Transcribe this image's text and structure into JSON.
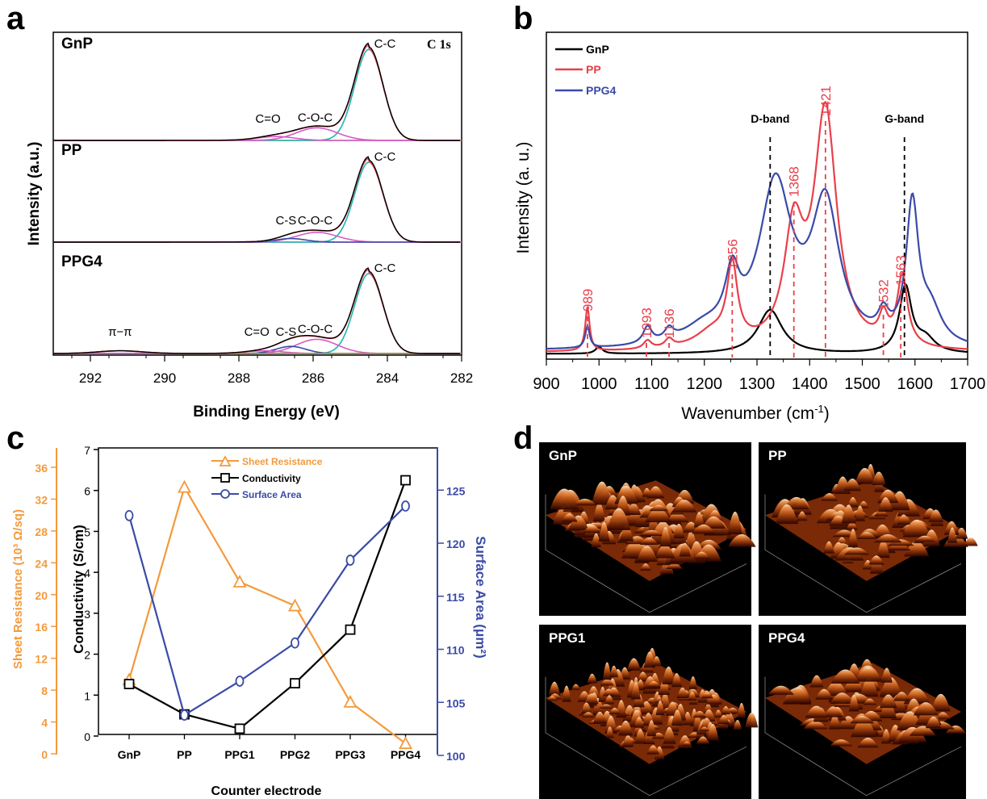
{
  "panels": {
    "a": "a",
    "b": "b",
    "c": "c",
    "d": "d"
  },
  "colors": {
    "black": "#000000",
    "red": "#e8404a",
    "blue": "#3a4aa8",
    "orange": "#f39a3c",
    "cyan": "#1fb5b0",
    "magenta": "#d65ac8",
    "olive": "#9aa035"
  },
  "chart_data": [
    {
      "panel": "a",
      "type": "line",
      "corner_label": "C 1s",
      "xlabel": "Binding Energy (eV)",
      "ylabel": "Intensity (a.u.)",
      "xlim": [
        293,
        282
      ],
      "xticks": [
        "292",
        "290",
        "288",
        "286",
        "284",
        "282"
      ],
      "spectra": [
        {
          "sample": "GnP",
          "main_peak": 284.5,
          "height": 1.0,
          "peaks": [
            {
              "label": "C-C",
              "center": 284.5,
              "height": 0.94
            },
            {
              "label": "C-O-C",
              "center": 285.9,
              "height": 0.13
            },
            {
              "label": "C=O",
              "center": 287.0,
              "height": 0.04
            }
          ]
        },
        {
          "sample": "PP",
          "main_peak": 284.5,
          "height": 0.94,
          "peaks": [
            {
              "label": "C-C",
              "center": 284.5,
              "height": 0.9
            },
            {
              "label": "C-O-C",
              "center": 285.9,
              "height": 0.11
            },
            {
              "label": "C-S",
              "center": 286.6,
              "height": 0.04
            }
          ]
        },
        {
          "sample": "PPG4",
          "main_peak": 284.5,
          "height": 0.94,
          "peaks": [
            {
              "label": "C-C",
              "center": 284.5,
              "height": 0.9
            },
            {
              "label": "C-O-C",
              "center": 285.9,
              "height": 0.16
            },
            {
              "label": "C-S",
              "center": 286.6,
              "height": 0.08
            },
            {
              "label": "C=O",
              "center": 287.3,
              "height": 0.03
            },
            {
              "label": "π−π",
              "center": 291.2,
              "height": 0.03
            }
          ]
        }
      ]
    },
    {
      "panel": "b",
      "type": "line",
      "xlabel": "Wavenumber (cm",
      "xlabel_sup": "-1",
      "xlabel_end": ")",
      "ylabel": "Intensity (a. u.)",
      "xlim": [
        900,
        1700
      ],
      "xticks": [
        "900",
        "1000",
        "1100",
        "1200",
        "1300",
        "1400",
        "1500",
        "1600",
        "1700"
      ],
      "legend": [
        "GnP",
        "PP",
        "PPG4"
      ],
      "band_labels": [
        {
          "text": "D-band",
          "x": 1325
        },
        {
          "text": "G-band",
          "x": 1580
        }
      ],
      "peak_labels": [
        {
          "text": "989",
          "x": 978
        },
        {
          "text": "1093",
          "x": 1090
        },
        {
          "text": "1136",
          "x": 1133
        },
        {
          "text": "1256",
          "x": 1253
        },
        {
          "text": "1368",
          "x": 1370
        },
        {
          "text": "1421",
          "x": 1430
        },
        {
          "text": "1532",
          "x": 1540
        },
        {
          "text": "1563",
          "x": 1573
        }
      ]
    },
    {
      "panel": "c",
      "type": "line",
      "xlabel": "Counter electrode",
      "categories": [
        "GnP",
        "PP",
        "PPG1",
        "PPG2",
        "PPG3",
        "PPG4"
      ],
      "axes": {
        "left_outer": {
          "label": "Sheet Resistance (10³ Ω/sq)",
          "lim": [
            0,
            36
          ],
          "ticks": [
            "0",
            "4",
            "8",
            "12",
            "16",
            "20",
            "24",
            "28",
            "32",
            "36"
          ]
        },
        "left_inner": {
          "label": "Conductivity (S/cm)",
          "lim": [
            0,
            7
          ],
          "ticks": [
            "0",
            "1",
            "2",
            "3",
            "4",
            "5",
            "6",
            "7"
          ]
        },
        "right": {
          "label": "Surface Area (μm²)",
          "lim": [
            100,
            127
          ],
          "ticks": [
            "100",
            "105",
            "110",
            "115",
            "120",
            "125"
          ]
        }
      },
      "series": [
        {
          "name": "Sheet Resistance",
          "axis": "left_outer",
          "values": [
            9.3,
            33.5,
            21.6,
            18.6,
            6.5,
            1.3
          ]
        },
        {
          "name": "Conductivity",
          "axis": "left_inner",
          "values": [
            1.27,
            0.53,
            0.18,
            1.29,
            2.6,
            6.25
          ]
        },
        {
          "name": "Surface Area",
          "axis": "right",
          "values": [
            122.6,
            103.8,
            107.0,
            110.6,
            118.4,
            123.5
          ]
        }
      ]
    }
  ],
  "afm": [
    {
      "label": "GnP"
    },
    {
      "label": "PP"
    },
    {
      "label": "PPG1"
    },
    {
      "label": "PPG4"
    }
  ]
}
